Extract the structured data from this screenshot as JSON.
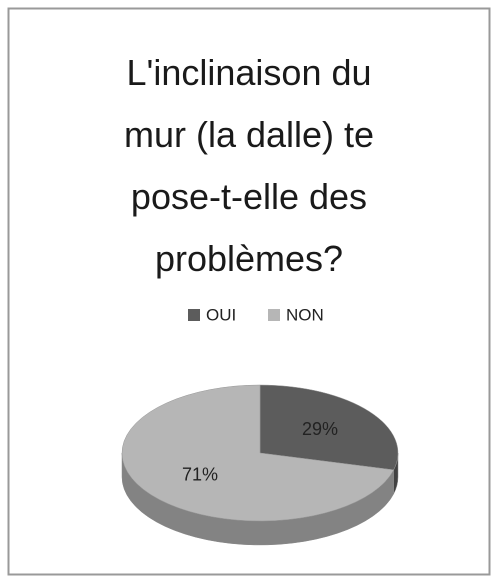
{
  "chart_data": {
    "type": "pie3d",
    "title": "L'inclinaison du mur (la dalle) te pose-t-elle des problèmes?",
    "categories": [
      "OUI",
      "NON"
    ],
    "values": [
      29,
      71
    ],
    "value_labels": [
      "29%",
      "71%"
    ],
    "colors": [
      "#5c5c5c",
      "#b6b6b6"
    ],
    "legend": "top"
  }
}
